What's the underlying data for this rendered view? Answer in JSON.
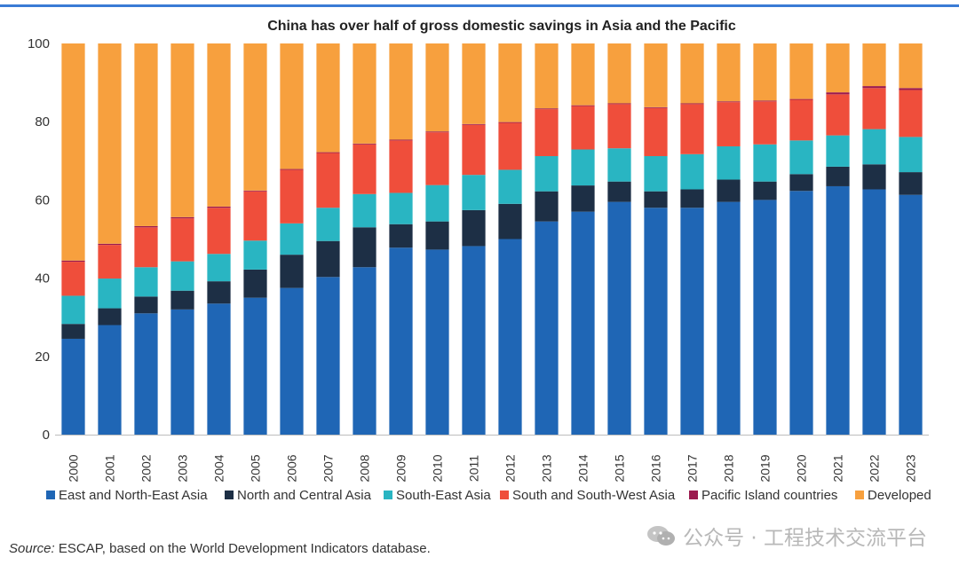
{
  "chart_data": {
    "type": "bar",
    "stacked": true,
    "title": "China has over half of gross domestic savings in Asia and the Pacific",
    "xlabel": "",
    "ylabel": "",
    "ylim": [
      0,
      100
    ],
    "yticks": [
      0,
      20,
      40,
      60,
      80,
      100
    ],
    "grid": false,
    "legend_position": "bottom",
    "categories": [
      "2000",
      "2001",
      "2002",
      "2003",
      "2004",
      "2005",
      "2006",
      "2007",
      "2008",
      "2009",
      "2010",
      "2011",
      "2012",
      "2013",
      "2014",
      "2015",
      "2016",
      "2017",
      "2018",
      "2019",
      "2020",
      "2021",
      "2022",
      "2023"
    ],
    "series": [
      {
        "name": "East and North-East Asia",
        "color": "#1f66b5",
        "values": [
          24.5,
          28,
          31,
          32,
          33.5,
          35,
          37.5,
          40.3,
          42.8,
          47.8,
          47.3,
          48.2,
          50,
          54.5,
          57,
          59.5,
          58,
          58,
          59.5,
          60,
          62.3,
          63.5,
          62.7,
          61.3
        ]
      },
      {
        "name": "North and Central Asia",
        "color": "#1d2f45",
        "values": [
          3.8,
          4.3,
          4.3,
          4.8,
          5.7,
          7.2,
          8.5,
          9.2,
          10.2,
          6,
          7.2,
          9.2,
          9,
          7.7,
          6.7,
          5.2,
          4.2,
          4.7,
          5.7,
          4.7,
          4.3,
          5,
          6.4,
          5.8
        ]
      },
      {
        "name": "South-East Asia",
        "color": "#29b5c2",
        "values": [
          7.2,
          7.6,
          7.5,
          7.5,
          7,
          7.4,
          8,
          8.5,
          8.5,
          8,
          9.3,
          9,
          8.7,
          9,
          9.2,
          8.5,
          9,
          9,
          8.5,
          9.5,
          8.6,
          8,
          9,
          9
        ]
      },
      {
        "name": "South and South-West Asia",
        "color": "#ef4e3b",
        "values": [
          8.7,
          8.6,
          10.2,
          11,
          11.8,
          12.6,
          13.7,
          14,
          12.7,
          13.4,
          13.5,
          12.8,
          12,
          12,
          11.1,
          11.3,
          12.3,
          12.8,
          11.3,
          11,
          10.4,
          10.5,
          10.5,
          12
        ]
      },
      {
        "name": "Pacific Island countries",
        "color": "#9b1b4f",
        "values": [
          0.3,
          0.3,
          0.3,
          0.3,
          0.3,
          0.2,
          0.2,
          0.2,
          0.2,
          0.2,
          0.2,
          0.2,
          0.2,
          0.2,
          0.2,
          0.2,
          0.2,
          0.2,
          0.2,
          0.2,
          0.2,
          0.5,
          0.5,
          0.5
        ]
      },
      {
        "name": "Developed",
        "color": "#f7a03e",
        "values": [
          55.5,
          51.2,
          46.7,
          44.4,
          41.7,
          37.6,
          32.1,
          27.8,
          25.6,
          24.6,
          22.5,
          20.6,
          20.1,
          16.6,
          15.8,
          15.3,
          16.3,
          15.3,
          14.8,
          14.6,
          14.2,
          12.5,
          10.9,
          11.4
        ]
      }
    ]
  },
  "source": {
    "label": "Source:",
    "text": " ESCAP, based on the World Development Indicators database."
  },
  "watermark": {
    "text": "公众号 · 工程技术交流平台"
  }
}
